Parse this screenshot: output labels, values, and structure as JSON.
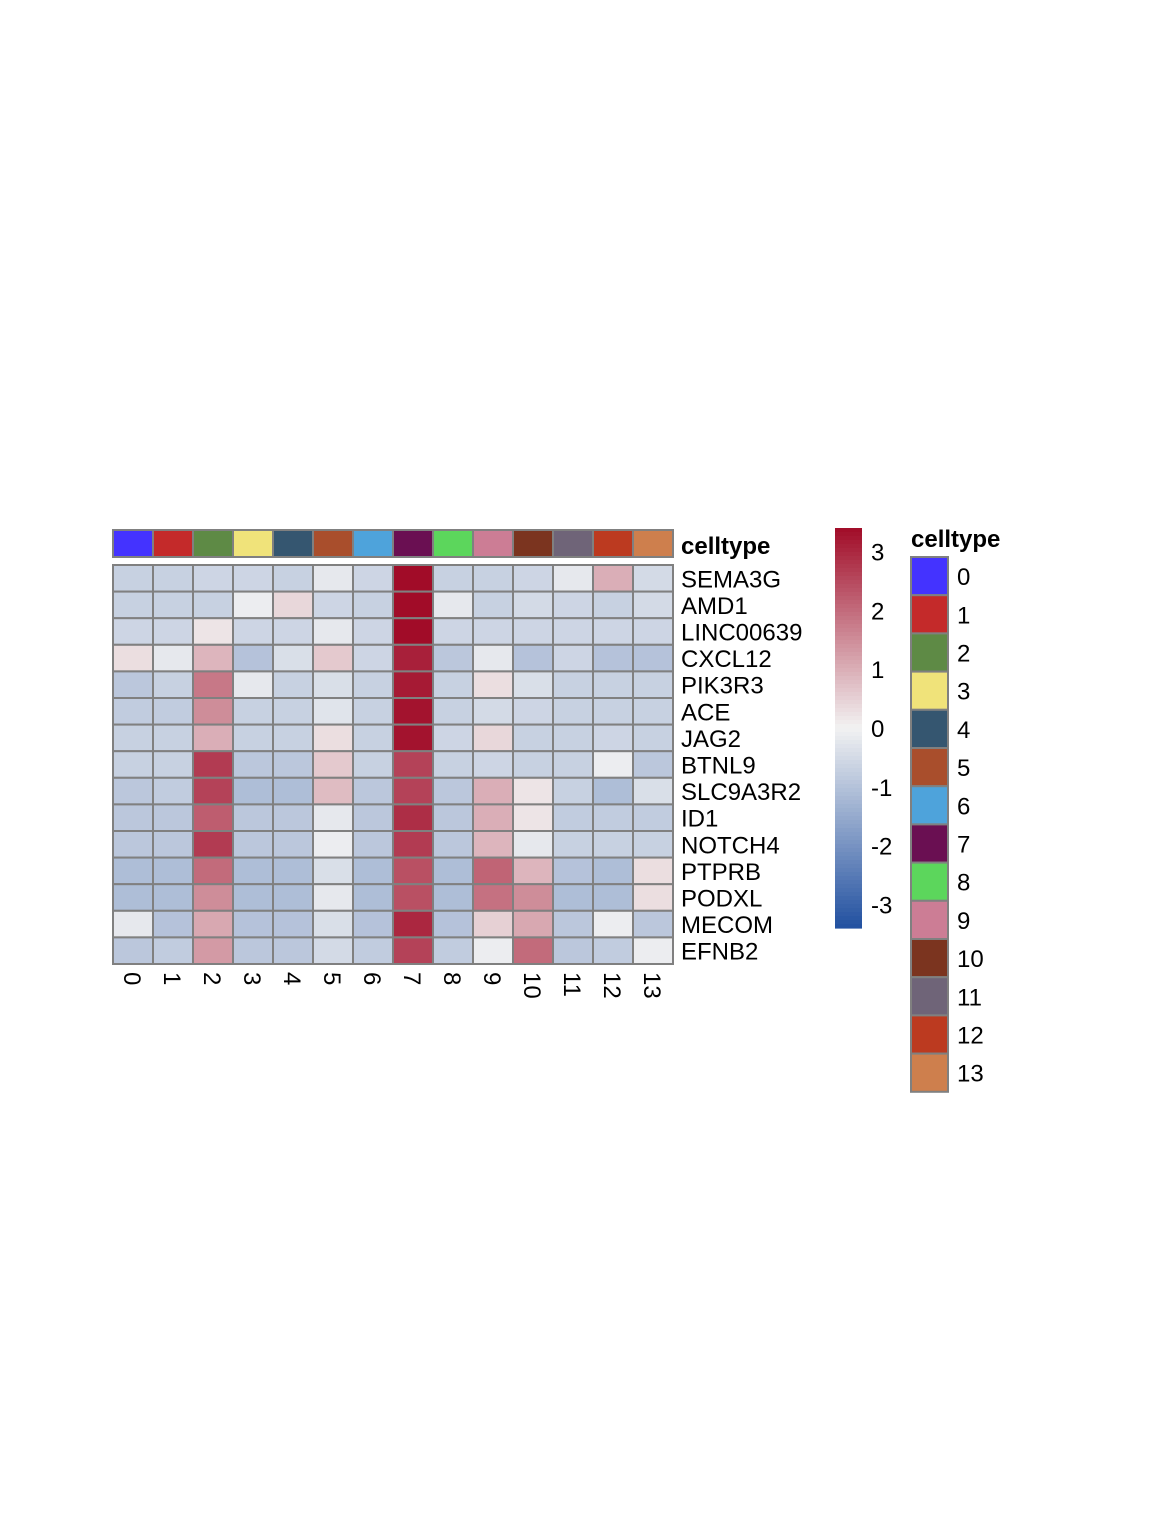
{
  "chart_data": {
    "type": "heatmap",
    "columns": [
      "0",
      "1",
      "2",
      "3",
      "4",
      "5",
      "6",
      "7",
      "8",
      "9",
      "10",
      "11",
      "12",
      "13"
    ],
    "rows": [
      "SEMA3G",
      "AMD1",
      "LINC00639",
      "CXCL12",
      "PIK3R3",
      "ACE",
      "JAG2",
      "BTNL9",
      "SLC9A3R2",
      "ID1",
      "NOTCH4",
      "PTPRB",
      "PODXL",
      "MECOM",
      "EFNB2"
    ],
    "values": [
      [
        -0.7,
        -0.7,
        -0.6,
        -0.6,
        -0.7,
        -0.2,
        -0.6,
        3.4,
        -0.7,
        -0.7,
        -0.6,
        -0.2,
        1.0,
        -0.5
      ],
      [
        -0.7,
        -0.7,
        -0.7,
        -0.1,
        0.4,
        -0.6,
        -0.7,
        3.4,
        -0.2,
        -0.7,
        -0.5,
        -0.6,
        -0.7,
        -0.5
      ],
      [
        -0.6,
        -0.6,
        0.2,
        -0.6,
        -0.6,
        -0.2,
        -0.6,
        3.4,
        -0.6,
        -0.6,
        -0.6,
        -0.6,
        -0.6,
        -0.6
      ],
      [
        0.3,
        -0.2,
        0.9,
        -1.0,
        -0.4,
        0.6,
        -0.6,
        3.1,
        -0.9,
        -0.2,
        -1.0,
        -0.6,
        -1.0,
        -1.0
      ],
      [
        -0.9,
        -0.7,
        1.8,
        -0.2,
        -0.7,
        -0.4,
        -0.7,
        3.2,
        -0.7,
        0.3,
        -0.4,
        -0.7,
        -0.7,
        -0.7
      ],
      [
        -0.8,
        -0.8,
        1.5,
        -0.7,
        -0.7,
        -0.3,
        -0.7,
        3.3,
        -0.7,
        -0.5,
        -0.6,
        -0.7,
        -0.7,
        -0.7
      ],
      [
        -0.7,
        -0.7,
        1.0,
        -0.7,
        -0.7,
        0.3,
        -0.7,
        3.3,
        -0.6,
        0.4,
        -0.7,
        -0.7,
        -0.6,
        -0.7
      ],
      [
        -0.7,
        -0.7,
        2.7,
        -0.9,
        -0.9,
        0.6,
        -0.7,
        2.6,
        -0.7,
        -0.6,
        -0.7,
        -0.7,
        -0.1,
        -0.9
      ],
      [
        -0.9,
        -0.8,
        2.6,
        -1.1,
        -1.1,
        0.8,
        -0.9,
        2.6,
        -0.9,
        1.0,
        0.2,
        -0.7,
        -1.1,
        -0.4
      ],
      [
        -0.9,
        -0.9,
        2.2,
        -0.9,
        -0.9,
        -0.2,
        -0.9,
        2.9,
        -0.9,
        1.0,
        0.2,
        -0.8,
        -0.8,
        -0.8
      ],
      [
        -0.9,
        -0.9,
        2.7,
        -0.9,
        -0.9,
        -0.1,
        -0.9,
        2.7,
        -0.9,
        0.9,
        -0.2,
        -0.7,
        -0.7,
        -0.7
      ],
      [
        -1.1,
        -1.1,
        2.0,
        -1.1,
        -1.1,
        -0.4,
        -1.1,
        2.4,
        -1.1,
        2.1,
        0.9,
        -1.0,
        -1.1,
        0.3
      ],
      [
        -1.1,
        -1.1,
        1.5,
        -1.1,
        -1.1,
        -0.2,
        -1.1,
        2.4,
        -1.1,
        1.9,
        1.5,
        -1.1,
        -1.1,
        0.3
      ],
      [
        -0.2,
        -1.0,
        1.1,
        -1.0,
        -1.0,
        -0.4,
        -1.0,
        3.0,
        -1.0,
        0.5,
        1.1,
        -0.9,
        -0.1,
        -0.9
      ],
      [
        -0.9,
        -0.8,
        1.3,
        -0.9,
        -0.9,
        -0.5,
        -0.8,
        2.6,
        -0.8,
        -0.1,
        2.0,
        -0.9,
        -0.8,
        -0.1
      ]
    ],
    "color_scale": {
      "stops": [
        -3.4,
        0,
        3.4
      ],
      "colors": [
        "#2150a0",
        "#f2f2f2",
        "#a10c28"
      ],
      "ticks": [
        3,
        2,
        1,
        0,
        -1,
        -2,
        -3
      ],
      "tick_labels": [
        "3",
        "2",
        "1",
        "0",
        "-1",
        "-2",
        "-3"
      ]
    },
    "annotation": {
      "title": "celltype",
      "row_label": "celltype",
      "categories": [
        "0",
        "1",
        "2",
        "3",
        "4",
        "5",
        "6",
        "7",
        "8",
        "9",
        "10",
        "11",
        "12",
        "13"
      ],
      "colors": [
        "#4433ff",
        "#c42a2a",
        "#5e8a45",
        "#f0e37a",
        "#355670",
        "#a94e2c",
        "#4ea3db",
        "#6a0f52",
        "#5cd65c",
        "#cc7d95",
        "#7b341f",
        "#6f6478",
        "#bc3a20",
        "#ce7f4d"
      ]
    },
    "grid": true,
    "legend_position": "right"
  }
}
